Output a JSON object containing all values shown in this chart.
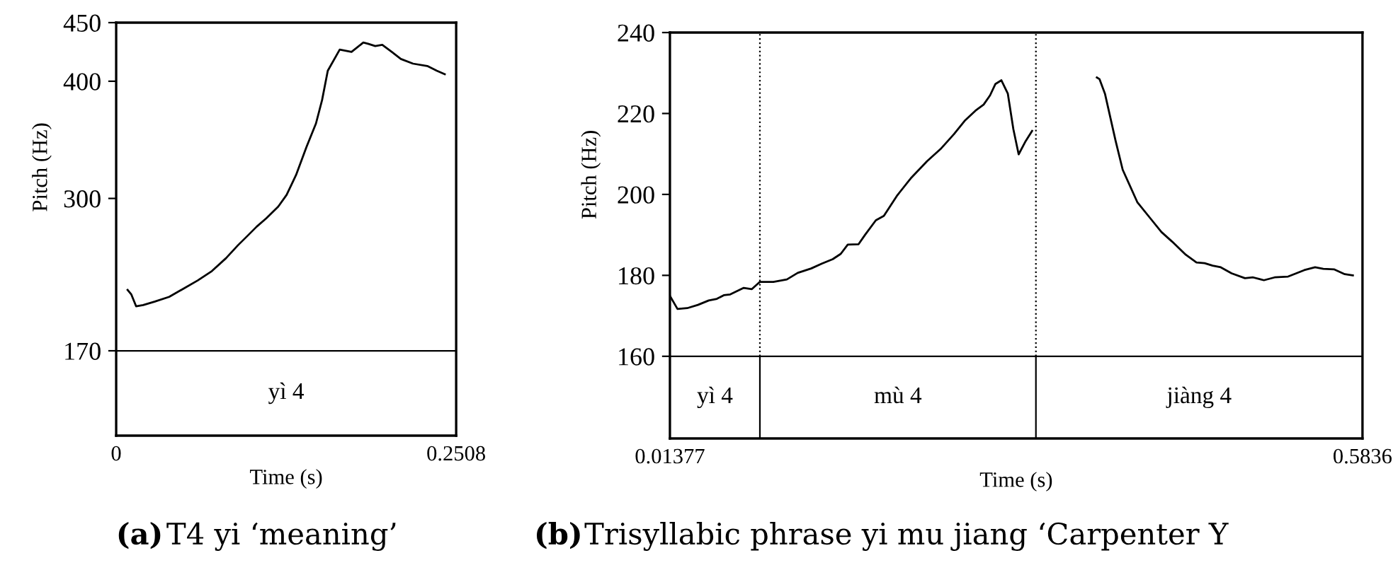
{
  "chart_data": [
    {
      "type": "line",
      "title": "(a) T4 yi ‘meaning’",
      "xlabel": "Time (s)",
      "ylabel": "Pitch (Hz)",
      "xlim": [
        0,
        0.2508
      ],
      "xticks": [
        0,
        0.2508
      ],
      "ylim": [
        97.6,
        450
      ],
      "yticks": [
        170,
        300,
        400,
        450
      ],
      "grid": false,
      "ref_lines": [
        {
          "axis": "y",
          "value": 170
        }
      ],
      "annotations": [
        "yì 4"
      ],
      "series": [
        {
          "color": "#000000",
          "x": [
            0.0084,
            0.0112,
            0.0147,
            0.0199,
            0.0286,
            0.0391,
            0.0496,
            0.0601,
            0.0706,
            0.081,
            0.0898,
            0.0968,
            0.1037,
            0.1107,
            0.1195,
            0.1257,
            0.1327,
            0.1404,
            0.1474,
            0.1519,
            0.1561,
            0.1649,
            0.1736,
            0.1823,
            0.1858,
            0.1911,
            0.1963,
            0.2033,
            0.21,
            0.219,
            0.2295,
            0.2365,
            0.2424
          ],
          "values": [
            222,
            218,
            208,
            209,
            212,
            216,
            223,
            230,
            238,
            249,
            260,
            268,
            276,
            283,
            293,
            303,
            320,
            344,
            364,
            384,
            409,
            427,
            425,
            433,
            432,
            430,
            431,
            425,
            419,
            415,
            413,
            409,
            406
          ]
        }
      ]
    },
    {
      "type": "line",
      "title": "(b) Trisyllabic phrase yi mu jiang ‘Carpenter Y",
      "xlabel": "Time (s)",
      "ylabel": "Pitch (Hz)",
      "xlim": [
        0.01377,
        0.5836
      ],
      "xticks": [
        0.01377,
        0.5836
      ],
      "ylim": [
        139.7,
        240
      ],
      "yticks": [
        160,
        180,
        200,
        220,
        240
      ],
      "grid": false,
      "ref_lines": [
        {
          "axis": "y",
          "value": 160
        },
        {
          "axis": "x",
          "value": 0.0878,
          "line_style": "dotted"
        },
        {
          "axis": "x",
          "value": 0.3149,
          "line_style": "dotted"
        }
      ],
      "annotations": [
        "yì 4",
        "mù 4",
        "jiàng 4"
      ],
      "series": [
        {
          "color": "#000000",
          "x": [
            0.0138,
            0.02,
            0.028,
            0.0368,
            0.0457,
            0.0524,
            0.0581,
            0.0634,
            0.0745,
            0.0812,
            0.0878,
            0.0989,
            0.11,
            0.1189,
            0.13,
            0.1388,
            0.1477,
            0.1543,
            0.1601,
            0.169,
            0.1743,
            0.1832,
            0.1898,
            0.2009,
            0.212,
            0.2253,
            0.2364,
            0.2475,
            0.2563,
            0.2652,
            0.2719,
            0.2772,
            0.2816,
            0.2865,
            0.2918,
            0.2963,
            0.3007,
            0.3065,
            0.3118,
            0.34,
            0.365,
            0.3672,
            0.3717,
            0.3805,
            0.3863,
            0.3983,
            0.4093,
            0.4182,
            0.4271,
            0.4382,
            0.447,
            0.4537,
            0.4603,
            0.467,
            0.4759,
            0.4869,
            0.4936,
            0.5025,
            0.5113,
            0.5224,
            0.5291,
            0.5357,
            0.5446,
            0.5513,
            0.5601,
            0.569,
            0.5757
          ],
          "values": [
            174.9,
            171.7,
            171.9,
            172.7,
            173.8,
            174.2,
            175.1,
            175.3,
            176.9,
            176.6,
            178.4,
            178.4,
            179.0,
            180.6,
            181.7,
            182.9,
            184.0,
            185.3,
            187.6,
            187.7,
            190.0,
            193.6,
            194.7,
            199.8,
            204.0,
            208.2,
            211.2,
            214.9,
            218.2,
            220.7,
            222.2,
            224.5,
            227.3,
            228.2,
            224.9,
            216.2,
            209.9,
            213.2,
            215.7,
            null,
            228.9,
            228.5,
            224.9,
            213.2,
            206.1,
            198.1,
            194.0,
            190.7,
            188.3,
            185.1,
            183.2,
            183.0,
            182.4,
            182.0,
            180.5,
            179.3,
            179.5,
            178.8,
            179.5,
            179.7,
            180.5,
            181.3,
            182.0,
            181.6,
            181.5,
            180.3,
            180.0
          ]
        }
      ]
    }
  ]
}
